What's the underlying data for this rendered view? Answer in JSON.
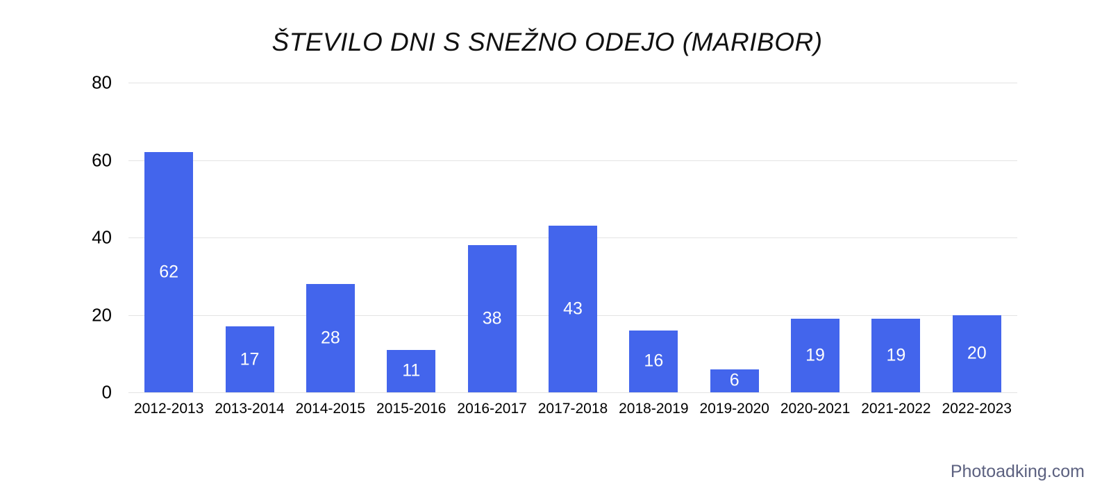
{
  "page": {
    "title": "ŠTEVILO DNI S SNEŽNO ODEJO (MARIBOR)",
    "watermark": "Photoadking.com"
  },
  "colors": {
    "background": "#ffffff",
    "bar": "#4365ec",
    "bar_value_label": "#fdfdfd",
    "gridline": "#e3e3e3",
    "axis_text": "#000000",
    "title_text": "#111111",
    "watermark_text": "#5c6180"
  },
  "chart_data": {
    "type": "bar",
    "title": "ŠTEVILO DNI S SNEŽNO ODEJO (MARIBOR)",
    "categories": [
      "2012-2013",
      "2013-2014",
      "2014-2015",
      "2015-2016",
      "2016-2017",
      "2017-2018",
      "2018-2019",
      "2019-2020",
      "2020-2021",
      "2021-2022",
      "2022-2023"
    ],
    "values": [
      62,
      17,
      28,
      11,
      38,
      43,
      16,
      6,
      19,
      19,
      20
    ],
    "xlabel": "",
    "ylabel": "",
    "ylim": [
      0,
      80
    ],
    "yticks": [
      0,
      20,
      40,
      60,
      80
    ],
    "grid": "horizontal",
    "legend": "none",
    "bar_value_labels": true
  }
}
